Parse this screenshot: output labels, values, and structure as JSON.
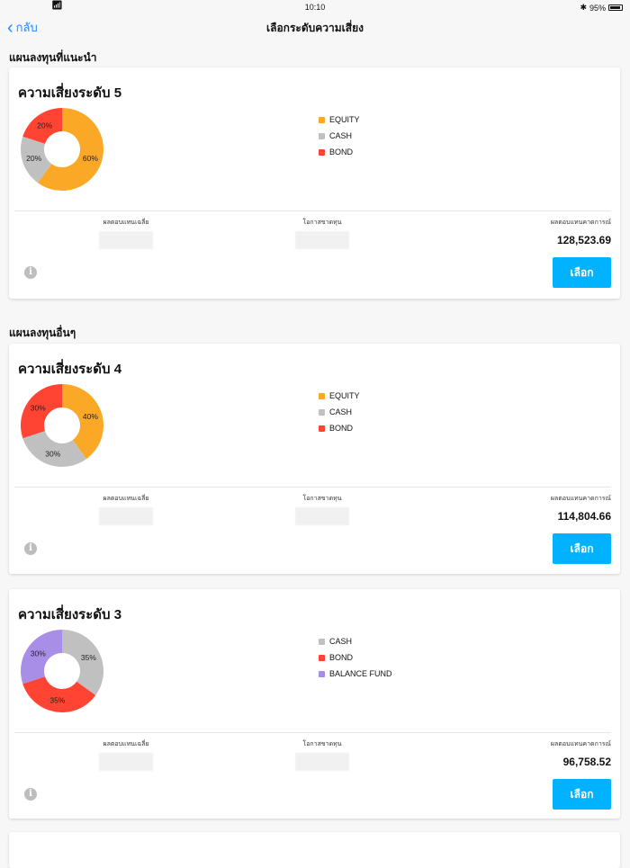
{
  "status": {
    "time": "10:10",
    "battery": "95%",
    "bluetooth": "✱"
  },
  "nav": {
    "back_label": "กลับ",
    "title": "เลือกระดับความเสี่ยง"
  },
  "sections": {
    "recommended": "แผนลงทุนที่แนะนำ",
    "others": "แผนลงทุนอื่นๆ"
  },
  "labels": {
    "avg_return": "ผลตอบแทนเฉลี่ย",
    "loss_chance": "โอกาสขาดทุน",
    "expected_return": "ผลตอบแทนคาดการณ์",
    "select": "เลือก"
  },
  "cards": [
    {
      "title": "ความเสี่ยงระดับ 5",
      "expected": "128,523.69",
      "chart_data": {
        "type": "pie",
        "slices": [
          {
            "label": "EQUITY",
            "value": 60,
            "color": "#FBA826"
          },
          {
            "label": "CASH",
            "value": 20,
            "color": "#C0C0C0"
          },
          {
            "label": "BOND",
            "value": 20,
            "color": "#FF4433"
          }
        ]
      }
    },
    {
      "title": "ความเสี่ยงระดับ 4",
      "expected": "114,804.66",
      "chart_data": {
        "type": "pie",
        "slices": [
          {
            "label": "EQUITY",
            "value": 40,
            "color": "#FBA826"
          },
          {
            "label": "CASH",
            "value": 30,
            "color": "#C0C0C0"
          },
          {
            "label": "BOND",
            "value": 30,
            "color": "#FF4433"
          }
        ]
      }
    },
    {
      "title": "ความเสี่ยงระดับ 3",
      "expected": "96,758.52",
      "chart_data": {
        "type": "pie",
        "slices": [
          {
            "label": "CASH",
            "value": 35,
            "color": "#C0C0C0"
          },
          {
            "label": "BOND",
            "value": 35,
            "color": "#FF4433"
          },
          {
            "label": "BALANCE FUND",
            "value": 30,
            "color": "#A98EE8"
          }
        ]
      }
    }
  ]
}
